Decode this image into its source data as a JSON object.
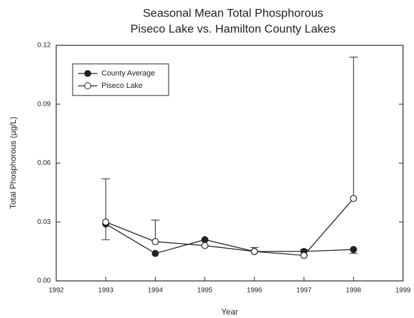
{
  "chart_data": {
    "type": "line",
    "title": "Seasonal Mean Total Phosphorous",
    "subtitle": "Piseco Lake vs. Hamilton County Lakes",
    "x_label": "Year",
    "y_label": "Total Phosphorous (µg/L)",
    "x": [
      1993,
      1994,
      1995,
      1996,
      1997,
      1998
    ],
    "series": [
      {
        "name": "County Average",
        "color": "#222222",
        "marker": "filled",
        "values": [
          0.029,
          0.014,
          0.021,
          0.015,
          0.015,
          0.016
        ],
        "errors": [
          0.008,
          null,
          null,
          null,
          0.002,
          0.002
        ],
        "error_direction": "down"
      },
      {
        "name": "Piseco Lake",
        "color": "#222222",
        "marker": "open",
        "values": [
          0.03,
          0.02,
          0.018,
          0.015,
          0.013,
          0.042
        ],
        "errors": [
          0.022,
          0.011,
          null,
          0.002,
          0.003,
          0.072
        ],
        "error_direction": "up"
      }
    ],
    "xlim": [
      1992,
      1999
    ],
    "xticks": [
      1992,
      1993,
      1994,
      1995,
      1996,
      1997,
      1998,
      1999
    ],
    "ylim": [
      0,
      0.12
    ],
    "yticks": [
      {
        "value": 0,
        "label": "0.00"
      },
      {
        "value": 0.03,
        "label": "0.03"
      },
      {
        "value": 0.06,
        "label": "0.06"
      },
      {
        "value": 0.09,
        "label": "0.09"
      },
      {
        "value": 0.12,
        "label": "0.12"
      }
    ],
    "legend": "upper left"
  }
}
